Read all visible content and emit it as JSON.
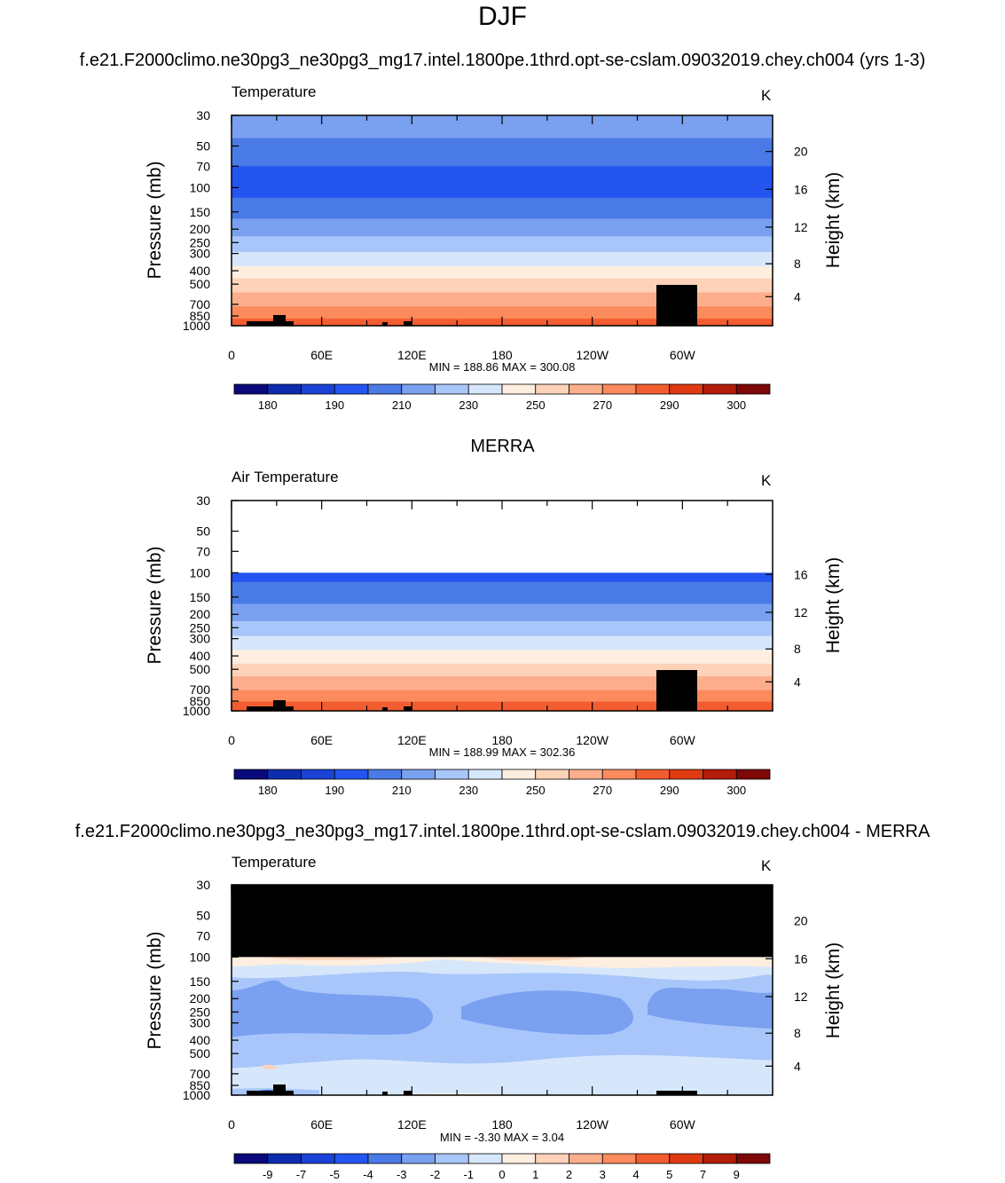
{
  "page": {
    "title": "DJF",
    "colors": {
      "temperature_palette": [
        "#0a0a7a",
        "#0d2cae",
        "#1a42d6",
        "#2455f0",
        "#4a7ae6",
        "#7aa0f0",
        "#a9c6fb",
        "#d6e7fc",
        "#fdeee0",
        "#fdd2b8",
        "#fcae8c",
        "#fb8a5c",
        "#f25d30",
        "#e03a12",
        "#b21c0a",
        "#7e0707"
      ],
      "difference_palette": [
        "#0a0a7a",
        "#0d2cae",
        "#1a42d6",
        "#2455f0",
        "#4a7ae6",
        "#7aa0f0",
        "#a9c6fb",
        "#d6e7fc",
        "#fdeee0",
        "#fdd2b8",
        "#fcae8c",
        "#fb8a5c",
        "#f25d30",
        "#e03a12",
        "#b21c0a",
        "#7e0707"
      ],
      "missing": "#000000"
    }
  },
  "chart_data": [
    {
      "type": "heatmap",
      "title": "f.e21.F2000climo.ne30pg3_ne30pg3_mg17.intel.1800pe.1thrd.opt-se-cslam.09032019.chey.ch004 (yrs 1-3)",
      "left_label": "Temperature",
      "right_label": "K",
      "xlabel": "",
      "ylabel": "Pressure (mb)",
      "y2label": "Height (km)",
      "x_ticks": [
        "0",
        "60E",
        "120E",
        "180",
        "120W",
        "60W"
      ],
      "y_ticks": [
        "30",
        "50",
        "70",
        "100",
        "150",
        "200",
        "250",
        "300",
        "400",
        "500",
        "700",
        "850",
        "1000"
      ],
      "y2_ticks": [
        "20",
        "16",
        "12",
        "8",
        "4"
      ],
      "stats": "MIN = 188.86  MAX = 300.08",
      "min": 188.86,
      "max": 300.08,
      "colorbar_labels": [
        "180",
        "190",
        "210",
        "230",
        "250",
        "270",
        "290",
        "300"
      ],
      "ylim": [
        1000,
        30
      ],
      "profile_levels_mb": [
        30,
        50,
        70,
        100,
        150,
        200,
        250,
        300,
        400,
        500,
        700,
        850,
        1000
      ],
      "profile_values_K": [
        218,
        207,
        200,
        196,
        206,
        216,
        224,
        231,
        244,
        254,
        268,
        278,
        287
      ]
    },
    {
      "type": "heatmap",
      "title": "MERRA",
      "left_label": "Air Temperature",
      "right_label": "K",
      "xlabel": "",
      "ylabel": "Pressure (mb)",
      "y2label": "Height (km)",
      "x_ticks": [
        "0",
        "60E",
        "120E",
        "180",
        "120W",
        "60W"
      ],
      "y_ticks": [
        "30",
        "50",
        "70",
        "100",
        "150",
        "200",
        "250",
        "300",
        "400",
        "500",
        "700",
        "850",
        "1000"
      ],
      "y2_ticks": [
        "16",
        "12",
        "8",
        "4"
      ],
      "stats": "MIN = 188.99  MAX = 302.36",
      "min": 188.99,
      "max": 302.36,
      "colorbar_labels": [
        "180",
        "190",
        "210",
        "230",
        "250",
        "270",
        "290",
        "300"
      ],
      "ylim": [
        1000,
        30
      ],
      "profile_levels_mb": [
        100,
        150,
        200,
        250,
        300,
        400,
        500,
        700,
        850,
        1000
      ],
      "profile_values_K": [
        196,
        206,
        216,
        224,
        232,
        244,
        255,
        269,
        279,
        288
      ]
    },
    {
      "type": "heatmap",
      "title": "f.e21.F2000climo.ne30pg3_ne30pg3_mg17.intel.1800pe.1thrd.opt-se-cslam.09032019.chey.ch004 - MERRA",
      "left_label": "Temperature",
      "right_label": "K",
      "xlabel": "",
      "ylabel": "Pressure (mb)",
      "y2label": "Height (km)",
      "x_ticks": [
        "0",
        "60E",
        "120E",
        "180",
        "120W",
        "60W"
      ],
      "y_ticks": [
        "30",
        "50",
        "70",
        "100",
        "150",
        "200",
        "250",
        "300",
        "400",
        "500",
        "700",
        "850",
        "1000"
      ],
      "y2_ticks": [
        "20",
        "16",
        "12",
        "8",
        "4"
      ],
      "stats": "MIN =  -3.30  MAX =   3.04",
      "min": -3.3,
      "max": 3.04,
      "colorbar_labels": [
        "-9",
        "-7",
        "-5",
        "-4",
        "-3",
        "-2",
        "-1",
        "0",
        "1",
        "2",
        "3",
        "4",
        "5",
        "7",
        "9"
      ],
      "ylim": [
        1000,
        30
      ],
      "missing_above_mb": 100
    }
  ]
}
